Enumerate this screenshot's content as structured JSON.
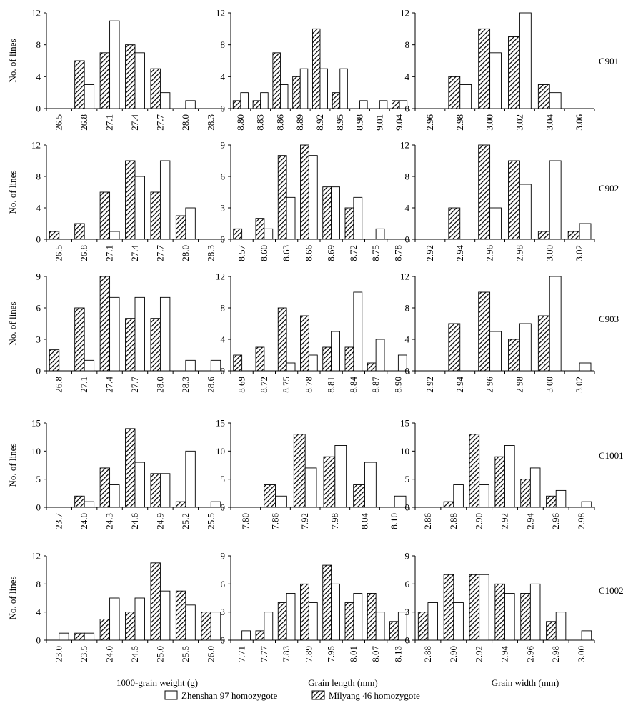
{
  "legend": {
    "zhenshan": "Zhenshan 97 homozygote",
    "milyang": "Milyang 46 homozygote"
  },
  "ylabel": "No. of lines",
  "xlabels": [
    "1000-grain weight (g)",
    "Grain length (mm)",
    "Grain width (mm)"
  ],
  "row_labels": [
    "C901",
    "C902",
    "C903",
    "C1001",
    "C1002"
  ],
  "colors": {
    "zhenshan_fill": "#ffffff",
    "milyang_hatch": "#000000",
    "axis": "#000000"
  },
  "chart_data": [
    {
      "type": "bar",
      "categories": [
        "26.5",
        "26.8",
        "27.1",
        "27.4",
        "27.7",
        "28.0",
        "28.3"
      ],
      "series": [
        {
          "name": "Milyang 46 homozygote",
          "values": [
            0,
            6,
            7,
            8,
            5,
            0,
            0
          ]
        },
        {
          "name": "Zhenshan 97 homozygote",
          "values": [
            0,
            3,
            11,
            7,
            2,
            1,
            0
          ]
        }
      ],
      "yticks": [
        "0",
        "4",
        "8",
        "12"
      ],
      "ylim": [
        0,
        12
      ]
    },
    {
      "type": "bar",
      "categories": [
        "8.80",
        "8.83",
        "8.86",
        "8.89",
        "8.92",
        "8.95",
        "8.98",
        "9.01",
        "9.04"
      ],
      "series": [
        {
          "name": "Milyang 46 homozygote",
          "values": [
            1,
            1,
            7,
            4,
            10,
            2,
            0,
            0,
            1
          ]
        },
        {
          "name": "Zhenshan 97 homozygote",
          "values": [
            2,
            2,
            3,
            5,
            5,
            5,
            1,
            1,
            1
          ]
        }
      ],
      "yticks": [
        "0",
        "4",
        "8",
        "12"
      ],
      "ylim": [
        0,
        12
      ]
    },
    {
      "type": "bar",
      "categories": [
        "2.96",
        "2.98",
        "3.00",
        "3.02",
        "3.04",
        "3.06"
      ],
      "series": [
        {
          "name": "Milyang 46 homozygote",
          "values": [
            0,
            4,
            10,
            9,
            3,
            0
          ]
        },
        {
          "name": "Zhenshan 97 homozygote",
          "values": [
            0,
            3,
            7,
            12,
            2,
            0
          ]
        }
      ],
      "yticks": [
        "0",
        "4",
        "8",
        "12"
      ],
      "ylim": [
        0,
        12
      ]
    },
    {
      "type": "bar",
      "categories": [
        "26.5",
        "26.8",
        "27.1",
        "27.4",
        "27.7",
        "28.0",
        "28.3"
      ],
      "series": [
        {
          "name": "Milyang 46 homozygote",
          "values": [
            1,
            2,
            6,
            10,
            6,
            3,
            0
          ]
        },
        {
          "name": "Zhenshan 97 homozygote",
          "values": [
            0,
            0,
            1,
            8,
            10,
            4,
            0
          ]
        }
      ],
      "yticks": [
        "0",
        "4",
        "8",
        "12"
      ],
      "ylim": [
        0,
        12
      ]
    },
    {
      "type": "bar",
      "categories": [
        "8.57",
        "8.60",
        "8.63",
        "8.66",
        "8.69",
        "8.72",
        "8.75",
        "8.78"
      ],
      "series": [
        {
          "name": "Milyang 46 homozygote",
          "values": [
            1,
            2,
            8,
            9,
            5,
            3,
            0,
            0
          ]
        },
        {
          "name": "Zhenshan 97 homozygote",
          "values": [
            0,
            1,
            4,
            8,
            5,
            4,
            1,
            0
          ]
        }
      ],
      "yticks": [
        "0",
        "3",
        "6",
        "9"
      ],
      "ylim": [
        0,
        9
      ]
    },
    {
      "type": "bar",
      "categories": [
        "2.92",
        "2.94",
        "2.96",
        "2.98",
        "3.00",
        "3.02"
      ],
      "series": [
        {
          "name": "Milyang 46 homozygote",
          "values": [
            0,
            4,
            12,
            10,
            1,
            1
          ]
        },
        {
          "name": "Zhenshan 97 homozygote",
          "values": [
            0,
            0,
            4,
            7,
            10,
            2
          ]
        }
      ],
      "yticks": [
        "0",
        "4",
        "8",
        "12"
      ],
      "ylim": [
        0,
        12
      ]
    },
    {
      "type": "bar",
      "categories": [
        "26.8",
        "27.1",
        "27.4",
        "27.7",
        "28.0",
        "28.3",
        "28.6"
      ],
      "series": [
        {
          "name": "Milyang 46 homozygote",
          "values": [
            2,
            6,
            9,
            5,
            5,
            0,
            0
          ]
        },
        {
          "name": "Zhenshan 97 homozygote",
          "values": [
            0,
            1,
            7,
            7,
            7,
            1,
            1
          ]
        }
      ],
      "yticks": [
        "0",
        "3",
        "6",
        "9"
      ],
      "ylim": [
        0,
        9
      ]
    },
    {
      "type": "bar",
      "categories": [
        "8.69",
        "8.72",
        "8.75",
        "8.78",
        "8.81",
        "8.84",
        "8.87",
        "8.90"
      ],
      "series": [
        {
          "name": "Milyang 46 homozygote",
          "values": [
            2,
            3,
            8,
            7,
            3,
            3,
            1,
            0
          ]
        },
        {
          "name": "Zhenshan 97 homozygote",
          "values": [
            0,
            0,
            1,
            2,
            5,
            10,
            4,
            2
          ]
        }
      ],
      "yticks": [
        "0",
        "4",
        "8",
        "12"
      ],
      "ylim": [
        0,
        12
      ]
    },
    {
      "type": "bar",
      "categories": [
        "2.92",
        "2.94",
        "2.96",
        "2.98",
        "3.00",
        "3.02"
      ],
      "series": [
        {
          "name": "Milyang 46 homozygote",
          "values": [
            0,
            6,
            10,
            4,
            7,
            0
          ]
        },
        {
          "name": "Zhenshan 97 homozygote",
          "values": [
            0,
            0,
            5,
            6,
            12,
            1
          ]
        }
      ],
      "yticks": [
        "0",
        "4",
        "8",
        "12"
      ],
      "ylim": [
        0,
        12
      ]
    },
    {
      "type": "bar",
      "categories": [
        "23.7",
        "24.0",
        "24.3",
        "24.6",
        "24.9",
        "25.2",
        "25.5"
      ],
      "series": [
        {
          "name": "Milyang 46 homozygote",
          "values": [
            0,
            2,
            7,
            14,
            6,
            1,
            0
          ]
        },
        {
          "name": "Zhenshan 97 homozygote",
          "values": [
            0,
            1,
            4,
            8,
            6,
            10,
            1
          ]
        }
      ],
      "yticks": [
        "0",
        "5",
        "10",
        "15"
      ],
      "ylim": [
        0,
        15
      ]
    },
    {
      "type": "bar",
      "categories": [
        "7.80",
        "7.86",
        "7.92",
        "7.98",
        "8.04",
        "8.10"
      ],
      "series": [
        {
          "name": "Milyang 46 homozygote",
          "values": [
            0,
            4,
            13,
            9,
            4,
            0
          ]
        },
        {
          "name": "Zhenshan 97 homozygote",
          "values": [
            0,
            2,
            7,
            11,
            8,
            2
          ]
        }
      ],
      "yticks": [
        "0",
        "5",
        "10",
        "15"
      ],
      "ylim": [
        0,
        15
      ]
    },
    {
      "type": "bar",
      "categories": [
        "2.86",
        "2.88",
        "2.90",
        "2.92",
        "2.94",
        "2.96",
        "2.98"
      ],
      "series": [
        {
          "name": "Milyang 46 homozygote",
          "values": [
            0,
            1,
            13,
            9,
            5,
            2,
            0
          ]
        },
        {
          "name": "Zhenshan 97 homozygote",
          "values": [
            0,
            4,
            4,
            11,
            7,
            3,
            1
          ]
        }
      ],
      "yticks": [
        "0",
        "5",
        "10",
        "15"
      ],
      "ylim": [
        0,
        15
      ]
    },
    {
      "type": "bar",
      "categories": [
        "23.0",
        "23.5",
        "24.0",
        "24.5",
        "25.0",
        "25.5",
        "26.0"
      ],
      "series": [
        {
          "name": "Milyang 46 homozygote",
          "values": [
            0,
            1,
            3,
            4,
            11,
            7,
            4
          ]
        },
        {
          "name": "Zhenshan 97 homozygote",
          "values": [
            1,
            1,
            6,
            6,
            7,
            5,
            4
          ]
        }
      ],
      "yticks": [
        "0",
        "4",
        "8",
        "12"
      ],
      "ylim": [
        0,
        12
      ]
    },
    {
      "type": "bar",
      "categories": [
        "7.71",
        "7.77",
        "7.83",
        "7.89",
        "7.95",
        "8.01",
        "8.07",
        "8.13"
      ],
      "series": [
        {
          "name": "Milyang 46 homozygote",
          "values": [
            0,
            1,
            4,
            6,
            8,
            4,
            5,
            2
          ]
        },
        {
          "name": "Zhenshan 97 homozygote",
          "values": [
            1,
            3,
            5,
            4,
            6,
            5,
            3,
            3
          ]
        }
      ],
      "yticks": [
        "0",
        "3",
        "6",
        "9"
      ],
      "ylim": [
        0,
        9
      ]
    },
    {
      "type": "bar",
      "categories": [
        "2.88",
        "2.90",
        "2.92",
        "2.94",
        "2.96",
        "2.98",
        "3.00"
      ],
      "series": [
        {
          "name": "Milyang 46 homozygote",
          "values": [
            3,
            7,
            7,
            6,
            5,
            2,
            0
          ]
        },
        {
          "name": "Zhenshan 97 homozygote",
          "values": [
            4,
            4,
            7,
            5,
            6,
            3,
            1
          ]
        }
      ],
      "yticks": [
        "0",
        "3",
        "6",
        "9"
      ],
      "ylim": [
        0,
        9
      ]
    }
  ]
}
